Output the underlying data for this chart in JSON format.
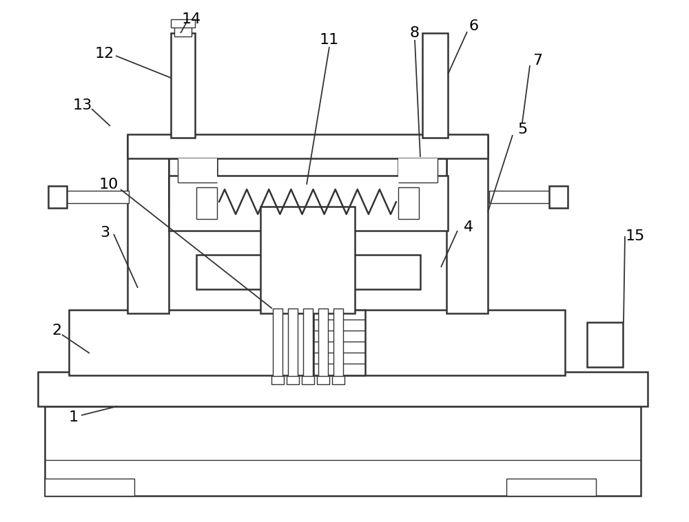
{
  "bg_color": "#ffffff",
  "line_color": "#333333",
  "line_width": 1.8,
  "thin_line": 1.0
}
